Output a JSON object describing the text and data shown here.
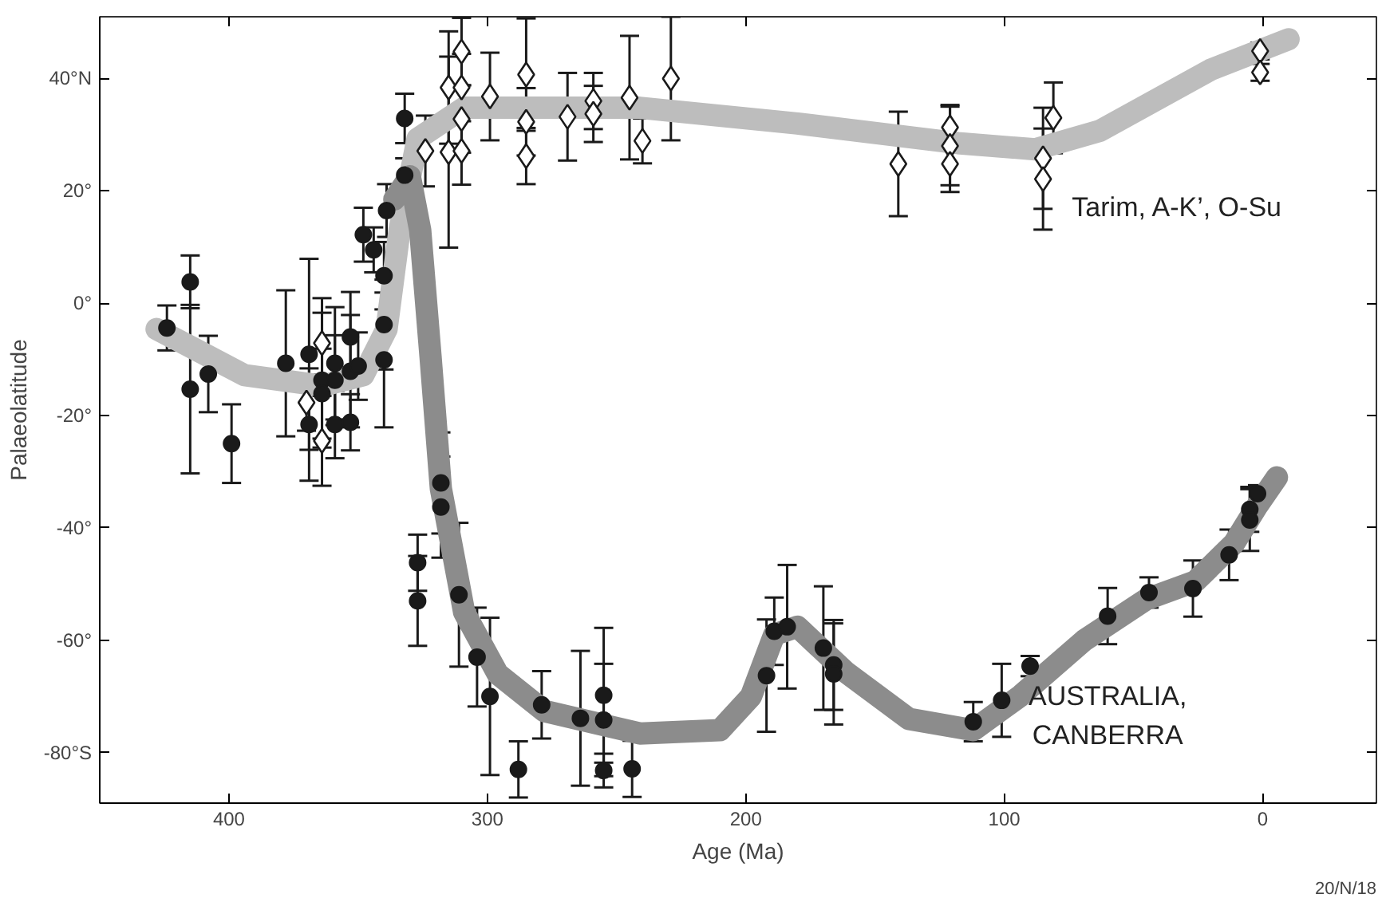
{
  "chart_data": {
    "type": "scatter",
    "xlabel": "Age (Ma)",
    "ylabel": "Palaeolatitude",
    "xlim": [
      450,
      -44
    ],
    "ylim": [
      -89,
      51
    ],
    "xticks": [
      400,
      300,
      200,
      100,
      0
    ],
    "yticks": [
      {
        "value": 40,
        "label": "40°N"
      },
      {
        "value": 20,
        "label": "20°"
      },
      {
        "value": 0,
        "label": "0°"
      },
      {
        "value": -20,
        "label": "-20°"
      },
      {
        "value": -40,
        "label": "-40°"
      },
      {
        "value": -60,
        "label": "-60°"
      },
      {
        "value": -80,
        "label": "-80°S"
      }
    ],
    "grid": false,
    "annotations": [
      "20/N/18"
    ],
    "series": [
      {
        "type": "line",
        "color": "#bdbdbd",
        "x": [
          428,
          394,
          364,
          348,
          339,
          334,
          327,
          309,
          241,
          180,
          118,
          88,
          63,
          20,
          -10
        ],
        "values": [
          -4.6,
          -12.8,
          -14.7,
          -12.8,
          -4.6,
          13,
          29.3,
          34.8,
          34.8,
          32,
          28.5,
          27.4,
          30.7,
          41.6,
          47
        ]
      },
      {
        "type": "line",
        "color": "#8c8c8c",
        "x": [
          336,
          330,
          326,
          322,
          318,
          309,
          296,
          278,
          241,
          210,
          198,
          189,
          180,
          161,
          137,
          112,
          94,
          69,
          45,
          26,
          11,
          2,
          -5.5
        ],
        "values": [
          18.5,
          22.6,
          13,
          -9.5,
          -33,
          -55,
          -66,
          -72.6,
          -76.6,
          -76,
          -70,
          -59,
          -57.6,
          -65.8,
          -74,
          -76,
          -70,
          -60,
          -52.7,
          -49.5,
          -42.7,
          -36,
          -31
        ]
      },
      {
        "name": "Tarim, A-K’, O-Su",
        "color": "#1a1a1a",
        "marker": "diamond",
        "x": [
          370,
          364,
          364,
          324,
          315,
          315,
          310,
          310,
          310,
          310,
          299,
          285,
          285,
          285,
          269,
          259,
          259,
          245,
          240,
          229,
          141,
          121,
          121,
          121,
          85,
          85,
          81,
          1,
          1
        ],
        "values": [
          -17.7,
          -7.1,
          -24.5,
          27.1,
          26.9,
          38.4,
          44.8,
          38.4,
          32.8,
          27.1,
          36.8,
          40.7,
          32.3,
          26.2,
          33.2,
          36,
          33.7,
          36.6,
          28.9,
          40,
          24.8,
          31.3,
          28,
          24.8,
          25.8,
          22.1,
          33,
          44.9,
          41.1
        ],
        "errors": [
          5,
          8,
          8,
          6.3,
          17,
          10,
          6,
          6,
          6,
          6,
          7.8,
          10,
          6,
          5,
          7.8,
          5,
          5,
          11,
          4,
          11,
          9.3,
          4,
          7,
          5,
          9,
          9,
          6.3,
          1.5,
          1.5
        ]
      },
      {
        "name": "AUSTRALIA, CANBERRA",
        "color": "#1a1a1a",
        "marker": "circle",
        "x": [
          424,
          415,
          415,
          408,
          399,
          378,
          369,
          369,
          364,
          364,
          359,
          359,
          359,
          353,
          353,
          353,
          350,
          348,
          344,
          340,
          340,
          340,
          339,
          332,
          332,
          327,
          327,
          318,
          318,
          311,
          304,
          299,
          288,
          279,
          264,
          255,
          255,
          255,
          244,
          192,
          189,
          184,
          170,
          166,
          166,
          112,
          101,
          90,
          60,
          44,
          27,
          13,
          5,
          5,
          2
        ],
        "values": [
          -4.4,
          3.8,
          -15.3,
          -12.6,
          -25,
          -10.7,
          -9.1,
          -21.6,
          -13.7,
          -16.1,
          -10.7,
          -13.7,
          -21.6,
          -6,
          -12.1,
          -21.2,
          -11.2,
          12.2,
          9.5,
          4.9,
          -3.8,
          -10.1,
          16.5,
          32.9,
          22.8,
          -46.2,
          -53,
          -32,
          -36.3,
          -51.9,
          -63,
          -70,
          -83,
          -71.5,
          -73.9,
          -69.8,
          -74.2,
          -83.2,
          -82.9,
          -66.3,
          -58.4,
          -57.6,
          -61.4,
          -64.4,
          -66,
          -74.5,
          -70.7,
          -64.6,
          -55.7,
          -51.5,
          -50.8,
          -44.8,
          -36.7,
          -38.6,
          -33.9
        ],
        "errors": [
          4,
          4.7,
          15,
          6.8,
          7,
          13,
          17,
          10,
          12,
          8,
          10,
          8,
          6,
          8,
          10,
          5,
          6,
          4.8,
          4,
          6,
          8,
          12,
          4.7,
          4.4,
          3,
          5,
          8,
          9,
          9,
          12.8,
          8.8,
          14,
          5,
          6,
          12,
          12,
          10,
          3,
          5,
          10,
          6,
          11,
          11,
          8,
          9,
          3.5,
          6.5,
          1.8,
          5,
          2.7,
          5,
          4.5,
          4,
          5.5,
          1.5
        ]
      }
    ]
  }
}
